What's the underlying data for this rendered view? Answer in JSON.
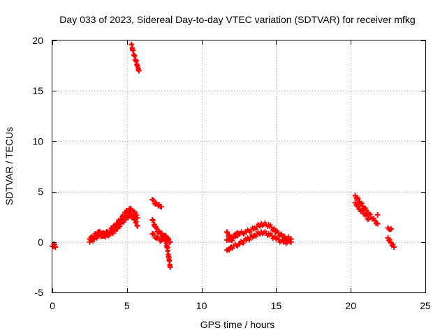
{
  "chart_data": {
    "type": "scatter",
    "title": "Day 033 of 2023, Sidereal Day-to-day VTEC variation (SDTVAR) for receiver mfkg",
    "xlabel": "GPS time / hours",
    "ylabel": "SDTVAR / TECUs",
    "xlim": [
      0,
      25
    ],
    "ylim": [
      -5,
      20
    ],
    "xticks": [
      "0",
      "5",
      "10",
      "15",
      "20",
      "25"
    ],
    "yticks": [
      "-5",
      "0",
      "5",
      "10",
      "15",
      "20"
    ],
    "grid": true,
    "marker": "+",
    "color": "#ff0000",
    "series": [
      {
        "name": "SDTVAR",
        "segments": [
          [
            [
              0.0,
              -0.4
            ],
            [
              0.1,
              -0.2
            ],
            [
              0.2,
              -0.5
            ]
          ],
          [
            [
              5.3,
              19.6
            ],
            [
              5.4,
              19.0
            ],
            [
              5.5,
              18.5
            ],
            [
              5.6,
              18.0
            ],
            [
              5.7,
              17.5
            ],
            [
              5.8,
              17.0
            ]
          ],
          [
            [
              2.5,
              0.3
            ],
            [
              2.8,
              0.6
            ],
            [
              3.1,
              1.0
            ],
            [
              3.4,
              0.9
            ],
            [
              3.7,
              1.0
            ],
            [
              4.0,
              1.3
            ],
            [
              4.3,
              1.8
            ],
            [
              4.6,
              2.3
            ],
            [
              4.9,
              2.9
            ],
            [
              5.2,
              3.3
            ],
            [
              5.5,
              3.0
            ],
            [
              5.7,
              2.4
            ]
          ],
          [
            [
              2.5,
              0.0
            ],
            [
              2.8,
              0.3
            ],
            [
              3.1,
              0.7
            ],
            [
              3.4,
              0.6
            ],
            [
              3.7,
              0.7
            ],
            [
              4.0,
              0.9
            ],
            [
              4.3,
              1.3
            ],
            [
              4.6,
              1.8
            ],
            [
              4.9,
              2.3
            ],
            [
              5.2,
              2.7
            ],
            [
              5.5,
              2.3
            ],
            [
              5.7,
              1.6
            ]
          ],
          [
            [
              6.7,
              4.2
            ],
            [
              6.9,
              3.8
            ],
            [
              7.1,
              3.6
            ],
            [
              7.3,
              3.5
            ]
          ],
          [
            [
              6.7,
              2.2
            ],
            [
              6.9,
              1.5
            ],
            [
              7.1,
              1.0
            ],
            [
              7.3,
              0.8
            ],
            [
              7.5,
              0.5
            ],
            [
              7.7,
              -0.5
            ],
            [
              7.8,
              -1.5
            ],
            [
              7.9,
              -2.5
            ]
          ],
          [
            [
              6.7,
              0.8
            ],
            [
              7.0,
              0.4
            ],
            [
              7.3,
              0.2
            ],
            [
              7.6,
              0.6
            ],
            [
              7.9,
              0.0
            ]
          ],
          [
            [
              11.7,
              -0.8
            ],
            [
              12.0,
              -0.5
            ],
            [
              12.5,
              -0.2
            ],
            [
              13.0,
              0.2
            ],
            [
              13.5,
              0.6
            ],
            [
              14.0,
              1.0
            ],
            [
              14.5,
              0.8
            ],
            [
              15.0,
              0.3
            ],
            [
              15.5,
              0.0
            ],
            [
              16.0,
              0.0
            ]
          ],
          [
            [
              11.7,
              0.2
            ],
            [
              12.0,
              0.5
            ],
            [
              12.5,
              0.8
            ],
            [
              13.0,
              1.0
            ],
            [
              13.5,
              1.3
            ],
            [
              14.0,
              1.8
            ],
            [
              14.5,
              1.7
            ],
            [
              15.0,
              1.0
            ],
            [
              15.5,
              0.5
            ],
            [
              16.0,
              0.3
            ]
          ],
          [
            [
              11.7,
              1.0
            ],
            [
              12.0,
              0.2
            ],
            [
              12.4,
              0.9
            ]
          ],
          [
            [
              20.3,
              4.6
            ],
            [
              20.6,
              4.0
            ],
            [
              20.9,
              3.4
            ],
            [
              21.2,
              2.8
            ],
            [
              21.5,
              2.3
            ],
            [
              21.8,
              1.8
            ]
          ],
          [
            [
              20.3,
              3.9
            ],
            [
              20.6,
              3.3
            ],
            [
              20.9,
              2.8
            ],
            [
              21.2,
              2.3
            ]
          ],
          [
            [
              21.8,
              2.7
            ]
          ],
          [
            [
              22.5,
              1.4
            ],
            [
              22.7,
              1.3
            ]
          ],
          [
            [
              22.5,
              0.4
            ],
            [
              22.7,
              -0.1
            ],
            [
              22.9,
              -0.5
            ]
          ]
        ]
      }
    ]
  }
}
